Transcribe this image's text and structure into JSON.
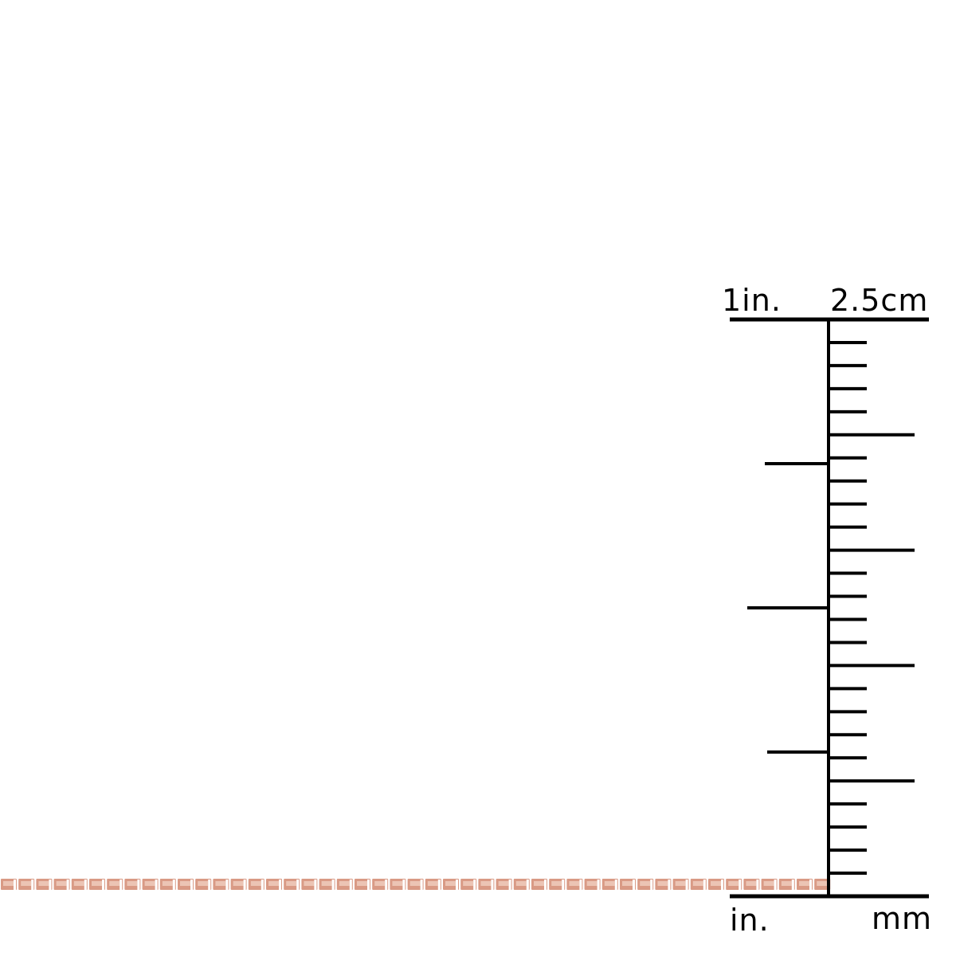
{
  "ruler": {
    "top_left_label": "1in.",
    "top_right_label": "2.5cm",
    "bottom_left_label": "in.",
    "bottom_right_label": "mm",
    "mm_ticks": 25,
    "inch_subdivisions": 4,
    "color": "#000000"
  },
  "chain": {
    "style": "box chain",
    "color": "#d99a85",
    "highlight_color": "#f3d5c8"
  }
}
